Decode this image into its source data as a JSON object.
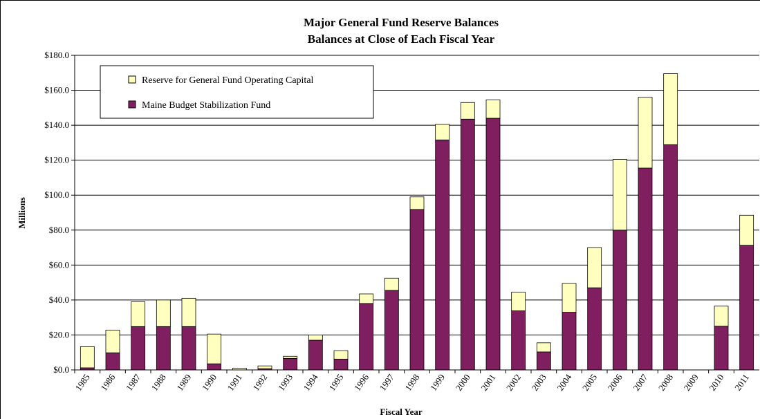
{
  "chart_data": {
    "type": "stacked_bar",
    "title": "Major General Fund Reserve Balances",
    "subtitle": "Balances at Close of Each Fiscal Year",
    "x_label": "Fiscal Year",
    "y_label": "Millions",
    "categories": [
      "1985",
      "1986",
      "1987",
      "1988",
      "1989",
      "1990",
      "1991",
      "1992",
      "1993",
      "1994",
      "1995",
      "1996",
      "1997",
      "1998",
      "1999",
      "2000",
      "2001",
      "2002",
      "2003",
      "2004",
      "2005",
      "2006",
      "2007",
      "2008",
      "2009",
      "2010",
      "2011"
    ],
    "series": [
      {
        "name": "Maine Budget Stabilization Fund",
        "color": "#7f1f5f",
        "values": [
          1.2,
          9.8,
          24.8,
          24.8,
          24.8,
          3.5,
          0,
          0.7,
          6.6,
          17,
          6.2,
          38,
          45.5,
          91.8,
          131.6,
          143.5,
          144,
          33.8,
          10.3,
          33,
          47,
          80,
          115.5,
          128.9,
          0,
          25,
          71.3
        ]
      },
      {
        "name": "Reserve for General Fund Operating Capital",
        "color": "#ffffc0",
        "values": [
          12.1,
          13,
          14.2,
          15.2,
          16.2,
          17,
          1.0,
          1.6,
          1.2,
          3,
          4.8,
          5.5,
          7,
          7.2,
          8.9,
          9.5,
          10.5,
          10.7,
          5.2,
          16.5,
          23,
          40.5,
          40.5,
          40.6,
          0,
          11.5,
          17.2
        ]
      }
    ],
    "ylim": [
      0,
      180
    ],
    "yticks": [
      {
        "value": 0,
        "label": "$0.0"
      },
      {
        "value": 20,
        "label": "$20.0"
      },
      {
        "value": 40,
        "label": "$40.0"
      },
      {
        "value": 60,
        "label": "$60.0"
      },
      {
        "value": 80,
        "label": "$80.0"
      },
      {
        "value": 100,
        "label": "$100.0"
      },
      {
        "value": 120,
        "label": "$120.0"
      },
      {
        "value": 140,
        "label": "$140.0"
      },
      {
        "value": 160,
        "label": "$160.0"
      },
      {
        "value": 180,
        "label": "$180.0"
      }
    ],
    "grid": true
  }
}
